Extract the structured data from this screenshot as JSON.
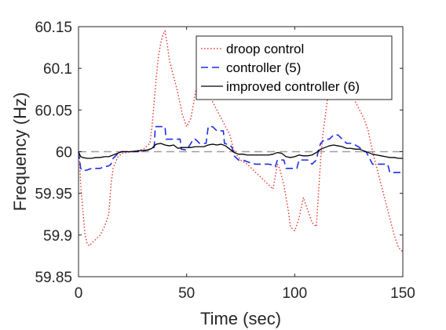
{
  "chart_data": {
    "type": "line",
    "title": "",
    "xlabel": "Time (sec)",
    "ylabel": "Frequency (Hz)",
    "xlim": [
      0,
      150
    ],
    "ylim": [
      59.85,
      60.15
    ],
    "xticks": [
      0,
      50,
      100,
      150
    ],
    "yticks": [
      59.85,
      59.9,
      59.95,
      60,
      60.05,
      60.1,
      60.15
    ],
    "xtick_labels": [
      "0",
      "50",
      "100",
      "150"
    ],
    "ytick_labels": [
      "59.85",
      "59.9",
      "59.95",
      "60",
      "60.05",
      "60.1",
      "60.15"
    ],
    "grid": false,
    "legend_position": "top-right",
    "reference_line": {
      "y": 60,
      "color": "#9e9e9e",
      "style": "dashed"
    },
    "series": [
      {
        "name": "droop control",
        "color": "#e8302a",
        "style": "dotted",
        "x": [
          0,
          0.5,
          1,
          2,
          3,
          4,
          5,
          6,
          8,
          10,
          12,
          14,
          15,
          16,
          18,
          20,
          25,
          30,
          33,
          34,
          35,
          36,
          37,
          38,
          39,
          40,
          41,
          42,
          44,
          46,
          48,
          50,
          52,
          54,
          56,
          58,
          60,
          61,
          62,
          64,
          66,
          68,
          70,
          72,
          75,
          78,
          80,
          82,
          84,
          86,
          88,
          90,
          91,
          92,
          93,
          94,
          95,
          96,
          97,
          98,
          100,
          102,
          104,
          106,
          108,
          110,
          111,
          112,
          113,
          114,
          115,
          116,
          118,
          120,
          122,
          124,
          126,
          128,
          130,
          132,
          134,
          136,
          138,
          140,
          142,
          144,
          146,
          148,
          150
        ],
        "y": [
          60.0,
          59.99,
          59.96,
          59.93,
          59.9,
          59.89,
          59.887,
          59.89,
          59.895,
          59.9,
          59.91,
          59.925,
          59.96,
          59.98,
          59.993,
          59.998,
          60.0,
          60.003,
          60.01,
          60.03,
          60.06,
          60.09,
          60.115,
          60.13,
          60.14,
          60.145,
          60.13,
          60.11,
          60.09,
          60.07,
          60.045,
          60.03,
          60.04,
          60.07,
          60.09,
          60.08,
          60.075,
          60.07,
          60.06,
          60.05,
          60.04,
          60.03,
          60.02,
          60.0,
          59.99,
          59.985,
          59.98,
          59.975,
          59.97,
          59.965,
          59.96,
          59.955,
          59.97,
          59.985,
          59.98,
          59.97,
          59.96,
          59.945,
          59.93,
          59.91,
          59.905,
          59.92,
          59.945,
          59.93,
          59.915,
          59.91,
          59.95,
          59.99,
          60.02,
          60.04,
          60.06,
          60.085,
          60.1,
          60.11,
          60.11,
          60.1,
          60.08,
          60.06,
          60.05,
          60.04,
          60.025,
          60.0,
          59.98,
          59.96,
          59.94,
          59.92,
          59.9,
          59.885,
          59.88
        ]
      },
      {
        "name": "controller (5)",
        "color": "#1f2fe0",
        "style": "dashed",
        "x": [
          0,
          1,
          2,
          4,
          6,
          8,
          10,
          12,
          14,
          15,
          16,
          18,
          20,
          24,
          28,
          32,
          35,
          35.5,
          38,
          40,
          40.5,
          42,
          44,
          46,
          47,
          47.5,
          50,
          52,
          53,
          54,
          56,
          58,
          59,
          60,
          62,
          64,
          66,
          67,
          67.5,
          70,
          71,
          72,
          74,
          76,
          78,
          80,
          82,
          84,
          86,
          88,
          90,
          91,
          92,
          94,
          95,
          96,
          98,
          100,
          101,
          102,
          104,
          106,
          108,
          110,
          111,
          112,
          114,
          116,
          118,
          120,
          122,
          124,
          126,
          128,
          130,
          132,
          133,
          134,
          136,
          138,
          140,
          142,
          143,
          144,
          146,
          148,
          150
        ],
        "y": [
          60.0,
          59.98,
          59.977,
          59.978,
          59.98,
          59.98,
          59.98,
          59.982,
          59.983,
          59.985,
          59.992,
          59.997,
          60.0,
          60.0,
          60.0,
          60.002,
          60.005,
          60.03,
          60.03,
          60.03,
          60.015,
          60.015,
          60.015,
          60.015,
          60.015,
          60.003,
          60.002,
          60.01,
          60.015,
          60.015,
          60.01,
          60.01,
          60.01,
          60.03,
          60.03,
          60.025,
          60.025,
          60.025,
          60.01,
          60.008,
          60.005,
          59.995,
          59.99,
          59.99,
          59.988,
          59.986,
          59.985,
          59.985,
          59.985,
          59.985,
          59.984,
          59.982,
          59.99,
          59.99,
          59.99,
          59.98,
          59.98,
          59.98,
          59.98,
          59.99,
          59.99,
          59.99,
          59.985,
          59.99,
          60.002,
          60.01,
          60.015,
          60.015,
          60.02,
          60.02,
          60.015,
          60.01,
          60.01,
          60.008,
          60.005,
          60.0,
          60.0,
          59.995,
          59.985,
          59.985,
          59.985,
          59.985,
          59.985,
          59.975,
          59.975,
          59.975,
          59.975
        ]
      },
      {
        "name": "improved controller (6)",
        "color": "#000000",
        "style": "solid",
        "x": [
          0,
          1,
          2,
          4,
          6,
          8,
          10,
          12,
          14,
          16,
          18,
          20,
          24,
          28,
          32,
          34,
          35,
          36,
          38,
          40,
          42,
          44,
          45,
          46,
          48,
          50,
          52,
          54,
          56,
          58,
          60,
          62,
          64,
          66,
          68,
          70,
          72,
          74,
          76,
          78,
          80,
          82,
          84,
          86,
          88,
          90,
          92,
          94,
          96,
          98,
          100,
          102,
          104,
          106,
          108,
          110,
          112,
          114,
          116,
          118,
          120,
          122,
          124,
          126,
          128,
          130,
          132,
          134,
          136,
          138,
          140,
          142,
          144,
          146,
          148,
          150
        ],
        "y": [
          60.0,
          59.994,
          59.993,
          59.992,
          59.992,
          59.993,
          59.993,
          59.994,
          59.994,
          59.996,
          59.998,
          60.0,
          60.0,
          60.001,
          60.002,
          60.004,
          60.007,
          60.009,
          60.01,
          60.008,
          60.007,
          60.008,
          60.006,
          60.004,
          60.005,
          60.005,
          60.005,
          60.006,
          60.006,
          60.006,
          60.008,
          60.009,
          60.008,
          60.009,
          60.007,
          60.003,
          59.999,
          59.997,
          59.997,
          59.996,
          59.996,
          59.996,
          59.996,
          59.996,
          59.996,
          59.997,
          59.999,
          59.998,
          59.994,
          59.993,
          59.994,
          59.996,
          59.995,
          59.995,
          59.996,
          59.999,
          60.003,
          60.005,
          60.007,
          60.008,
          60.007,
          60.006,
          60.004,
          60.004,
          60.003,
          60.003,
          60.001,
          59.999,
          59.997,
          59.996,
          59.995,
          59.994,
          59.993,
          59.993,
          59.992,
          59.992
        ]
      }
    ]
  }
}
